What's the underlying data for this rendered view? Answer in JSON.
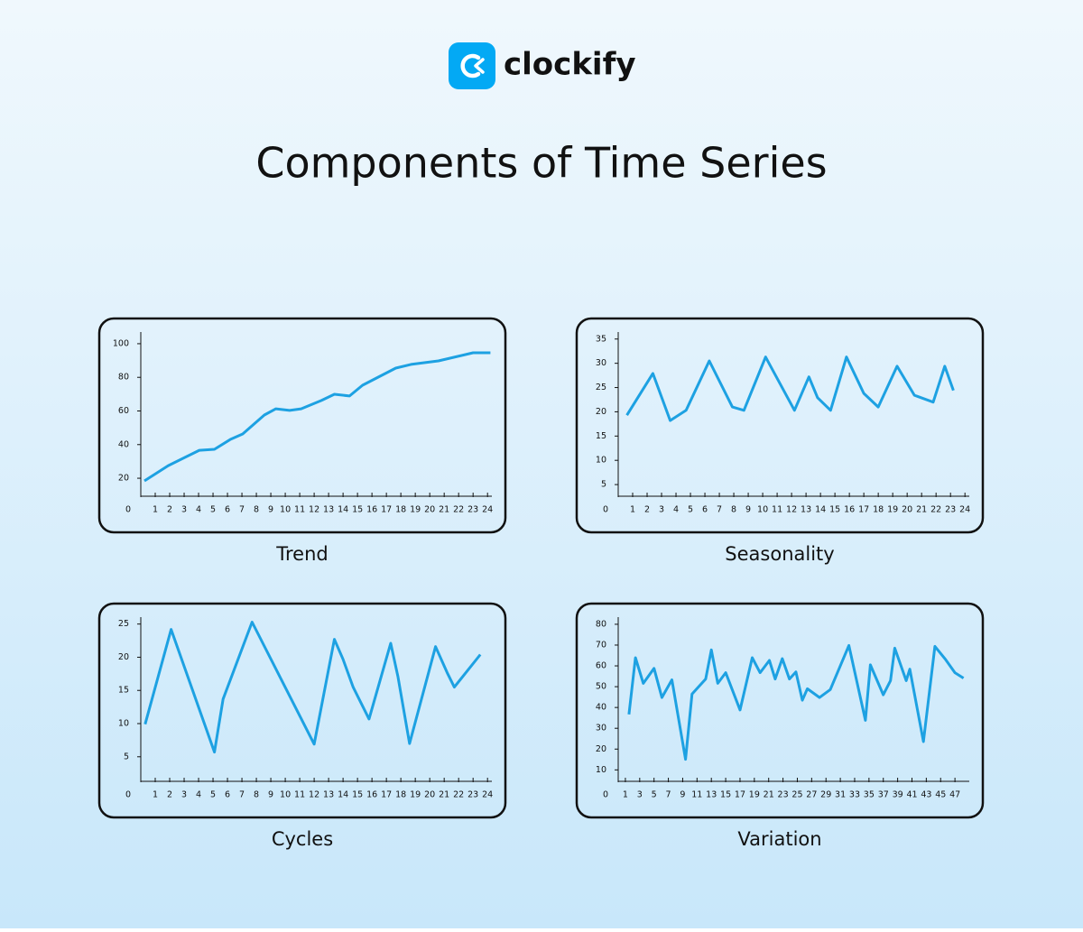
{
  "header": {
    "logo": "clockify",
    "title": "Components of Time Series"
  },
  "chart_data": [
    {
      "type": "line",
      "title": "Trend",
      "color": "#1da1e2",
      "x": [
        0.25,
        1.9,
        4.05,
        5.1,
        6.2,
        7.05,
        8.55,
        9.35,
        10.3,
        11.1,
        12.5,
        13.4,
        14.45,
        15.35,
        17.65,
        18.7,
        20.6,
        23,
        24.2
      ],
      "values": [
        18.4,
        27.5,
        36.6,
        37.2,
        43.1,
        46.3,
        57.6,
        61.3,
        60.3,
        61.3,
        66.2,
        69.9,
        68.9,
        75.3,
        85.5,
        87.7,
        89.8,
        94.6,
        94.6
      ],
      "xlim": [
        0,
        24.3
      ],
      "ylim": [
        9.3,
        104.8
      ],
      "xticks": [
        0,
        1,
        2,
        3,
        4,
        5,
        6,
        7,
        8,
        9,
        10,
        11,
        12,
        13,
        14,
        15,
        16,
        17,
        18,
        19,
        20,
        21,
        22,
        23,
        24
      ],
      "yticks": [
        20,
        40,
        60,
        80,
        100
      ]
    },
    {
      "type": "line",
      "title": "Seasonality",
      "color": "#1da1e2",
      "x": [
        0.6,
        2.4,
        3.6,
        4.7,
        6.3,
        7.9,
        8.7,
        10.2,
        12.2,
        13.2,
        13.8,
        14.7,
        15.8,
        17.0,
        18.0,
        19.3,
        20.5,
        21.8,
        22.6,
        23.2
      ],
      "values": [
        19.3,
        27.9,
        18.2,
        20.3,
        30.5,
        21.0,
        20.3,
        31.3,
        20.3,
        27.2,
        22.9,
        20.3,
        31.3,
        23.8,
        21.0,
        29.4,
        23.4,
        22.0,
        29.4,
        24.4
      ],
      "xlim": [
        0,
        24.3
      ],
      "ylim": [
        2.6,
        35.7
      ],
      "xticks": [
        0,
        1,
        2,
        3,
        4,
        5,
        6,
        7,
        8,
        9,
        10,
        11,
        12,
        13,
        14,
        15,
        16,
        17,
        18,
        19,
        20,
        21,
        22,
        23,
        24
      ],
      "yticks": [
        5,
        10,
        15,
        20,
        25,
        30,
        35
      ]
    },
    {
      "type": "line",
      "title": "Cycles",
      "color": "#1da1e2",
      "x": [
        0.3,
        2.1,
        5.1,
        5.7,
        7.7,
        12.0,
        13.4,
        14.0,
        14.7,
        15.8,
        17.3,
        17.8,
        18.6,
        20.4,
        21.2,
        21.7,
        23.5
      ],
      "values": [
        9.9,
        24.2,
        5.7,
        13.7,
        25.3,
        6.9,
        22.7,
        19.7,
        15.5,
        10.7,
        22.1,
        17.1,
        7.0,
        21.6,
        17.7,
        15.5,
        20.4
      ],
      "xlim": [
        0,
        24.3
      ],
      "ylim": [
        1.3,
        25.5
      ],
      "xticks": [
        0,
        1,
        2,
        3,
        4,
        5,
        6,
        7,
        8,
        9,
        10,
        11,
        12,
        13,
        14,
        15,
        16,
        17,
        18,
        19,
        20,
        21,
        22,
        23,
        24
      ],
      "yticks": [
        5,
        10,
        15,
        20,
        25
      ]
    },
    {
      "type": "line",
      "title": "Variation",
      "color": "#1da1e2",
      "x": [
        1.5,
        2.4,
        3.5,
        5.0,
        6.1,
        7.5,
        9.4,
        10.3,
        12.2,
        13.0,
        13.9,
        15.0,
        17.0,
        18.7,
        19.8,
        21.1,
        21.9,
        22.9,
        23.9,
        24.8,
        25.7,
        26.4,
        28.1,
        29.6,
        32.2,
        34.5,
        35.2,
        37.0,
        38.0,
        38.6,
        40.2,
        40.7,
        42.6,
        44.2,
        45.7,
        47.0,
        48.2
      ],
      "values": [
        36.7,
        63.9,
        51.6,
        58.8,
        44.8,
        53.3,
        15.1,
        46.5,
        53.7,
        67.7,
        51.6,
        56.7,
        38.8,
        63.9,
        56.7,
        62.6,
        53.7,
        63.5,
        53.7,
        57.1,
        43.5,
        49.0,
        44.8,
        48.6,
        69.8,
        33.8,
        60.5,
        46.1,
        52.9,
        68.5,
        52.9,
        58.4,
        23.6,
        69.4,
        63.0,
        56.7,
        54.1
      ],
      "xlim": [
        0,
        49
      ],
      "ylim": [
        4.5,
        81.7
      ],
      "xticks": [
        0,
        1,
        3,
        5,
        7,
        9,
        11,
        13,
        15,
        17,
        19,
        21,
        23,
        25,
        27,
        29,
        31,
        33,
        35,
        37,
        39,
        41,
        43,
        45,
        47
      ],
      "yticks": [
        10,
        20,
        30,
        40,
        50,
        60,
        70,
        80
      ]
    }
  ]
}
